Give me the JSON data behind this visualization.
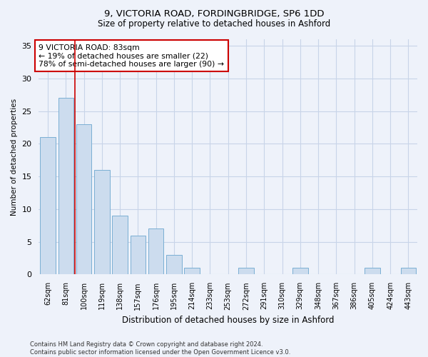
{
  "title1": "9, VICTORIA ROAD, FORDINGBRIDGE, SP6 1DD",
  "title2": "Size of property relative to detached houses in Ashford",
  "xlabel": "Distribution of detached houses by size in Ashford",
  "ylabel": "Number of detached properties",
  "categories": [
    "62sqm",
    "81sqm",
    "100sqm",
    "119sqm",
    "138sqm",
    "157sqm",
    "176sqm",
    "195sqm",
    "214sqm",
    "233sqm",
    "253sqm",
    "272sqm",
    "291sqm",
    "310sqm",
    "329sqm",
    "348sqm",
    "367sqm",
    "386sqm",
    "405sqm",
    "424sqm",
    "443sqm"
  ],
  "values": [
    21,
    27,
    23,
    16,
    9,
    6,
    7,
    3,
    1,
    0,
    0,
    1,
    0,
    0,
    1,
    0,
    0,
    0,
    1,
    0,
    1
  ],
  "bar_color": "#ccdcee",
  "bar_edge_color": "#7aafd4",
  "vline_x": 1.5,
  "vline_color": "#cc0000",
  "annotation_text": "9 VICTORIA ROAD: 83sqm\n← 19% of detached houses are smaller (22)\n78% of semi-detached houses are larger (90) →",
  "annotation_box_color": "#ffffff",
  "annotation_box_edge": "#cc0000",
  "ylim": [
    0,
    36
  ],
  "yticks": [
    0,
    5,
    10,
    15,
    20,
    25,
    30,
    35
  ],
  "grid_color": "#c8d4e8",
  "bg_color": "#eef2fa",
  "footer": "Contains HM Land Registry data © Crown copyright and database right 2024.\nContains public sector information licensed under the Open Government Licence v3.0.",
  "title1_fontsize": 9.5,
  "title2_fontsize": 8.5
}
